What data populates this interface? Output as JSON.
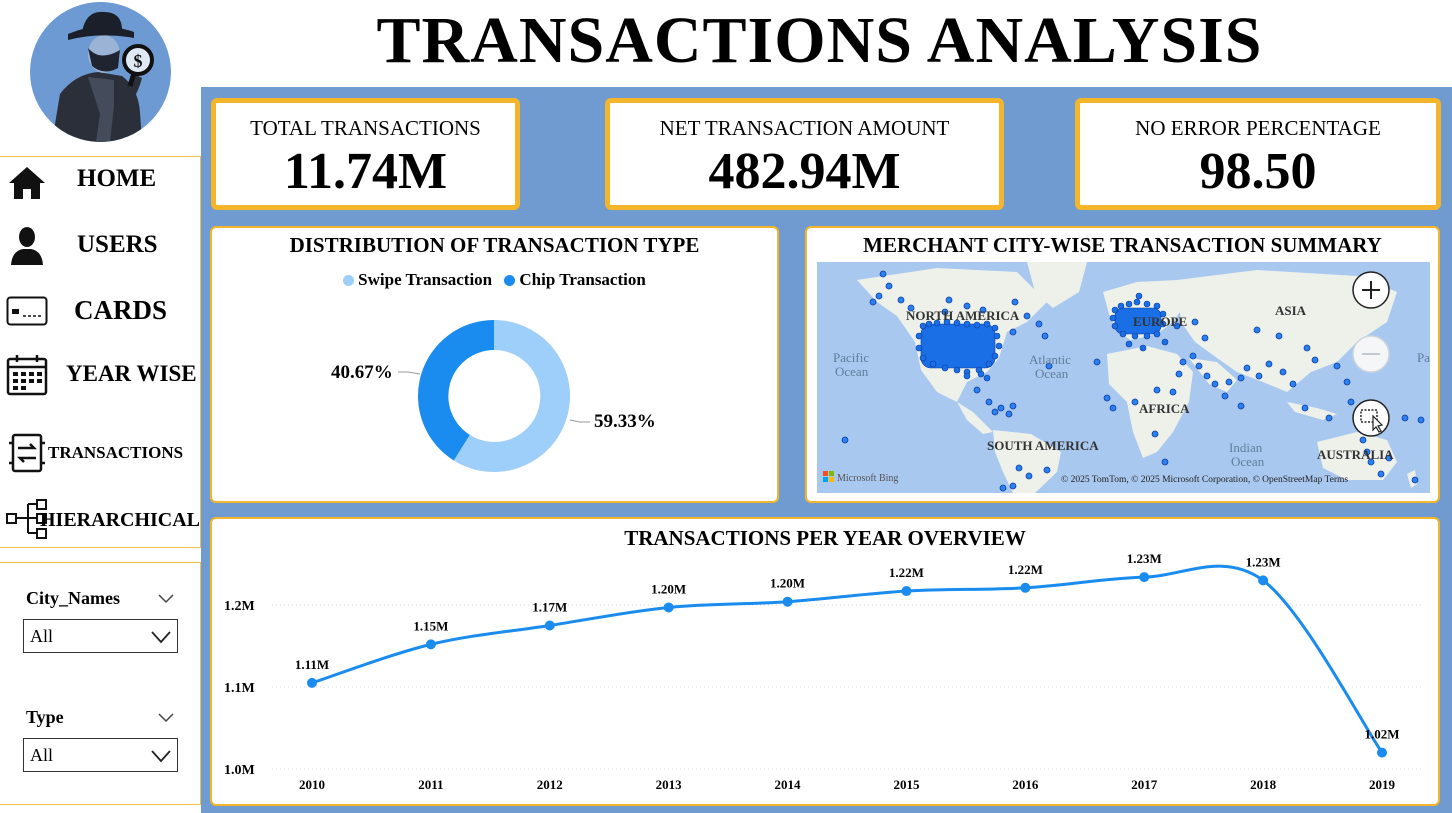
{
  "header": {
    "title": "TRANSACTIONS ANALYSIS"
  },
  "sidebar": {
    "items": [
      {
        "label": "HOME",
        "icon": "home-icon"
      },
      {
        "label": "USERS",
        "icon": "user-icon"
      },
      {
        "label": "CARDS",
        "icon": "card-icon"
      },
      {
        "label": "YEAR WISE",
        "icon": "calendar-icon"
      },
      {
        "label": "TRANSACTIONS",
        "icon": "transactions-icon"
      },
      {
        "label": "HIERARCHICAL",
        "icon": "hierarchy-icon"
      }
    ]
  },
  "filters": {
    "city": {
      "title": "City_Names",
      "value": "All"
    },
    "type": {
      "title": "Type",
      "value": "All"
    }
  },
  "kpis": [
    {
      "title": "TOTAL TRANSACTIONS",
      "value": "11.74M"
    },
    {
      "title": "NET TRANSACTION AMOUNT",
      "value": "482.94M"
    },
    {
      "title": "NO ERROR PERCENTAGE",
      "value": "98.50"
    }
  ],
  "donut": {
    "title": "DISTRIBUTION OF TRANSACTION TYPE",
    "legend": [
      {
        "label": "Swipe Transaction",
        "color": "#9ecefa"
      },
      {
        "label": "Chip Transaction",
        "color": "#1a8cf0"
      }
    ],
    "labels": {
      "swipe": "59.33%",
      "chip": "40.67%"
    }
  },
  "map": {
    "title": "MERCHANT CITY-WISE TRANSACTION SUMMARY",
    "regions": {
      "north_america": "NORTH AMERICA",
      "europe": "EUROPE",
      "asia": "ASIA",
      "africa": "AFRICA",
      "south_america": "SOUTH AMERICA",
      "australia": "AUSTRALIA"
    },
    "oceans": {
      "pacific_1": "Pacific",
      "pacific_2": "Ocean",
      "atlantic_1": "Atlantic",
      "atlantic_2": "Ocean",
      "indian_1": "Indian",
      "indian_2": "Ocean",
      "pacific_right": "Pa"
    },
    "provider": "Microsoft Bing",
    "attribution": "© 2025 TomTom, © 2025 Microsoft Corporation, © OpenStreetMap Terms"
  },
  "chart_data": {
    "type": "line",
    "title": "TRANSACTIONS PER YEAR OVERVIEW",
    "categories": [
      "2010",
      "2011",
      "2012",
      "2013",
      "2014",
      "2015",
      "2016",
      "2017",
      "2018",
      "2019"
    ],
    "values": [
      1.105,
      1.152,
      1.175,
      1.197,
      1.204,
      1.217,
      1.221,
      1.234,
      1.23,
      1.02
    ],
    "data_labels": [
      "1.11M",
      "1.15M",
      "1.17M",
      "1.20M",
      "1.20M",
      "1.22M",
      "1.22M",
      "1.23M",
      "1.23M",
      "1.02M"
    ],
    "y_ticks": [
      {
        "value": 1.0,
        "label": "1.0M"
      },
      {
        "value": 1.1,
        "label": "1.1M"
      },
      {
        "value": 1.2,
        "label": "1.2M"
      }
    ],
    "ylim": [
      1.0,
      1.2
    ],
    "grid": true,
    "color": "#1a8cf0"
  }
}
